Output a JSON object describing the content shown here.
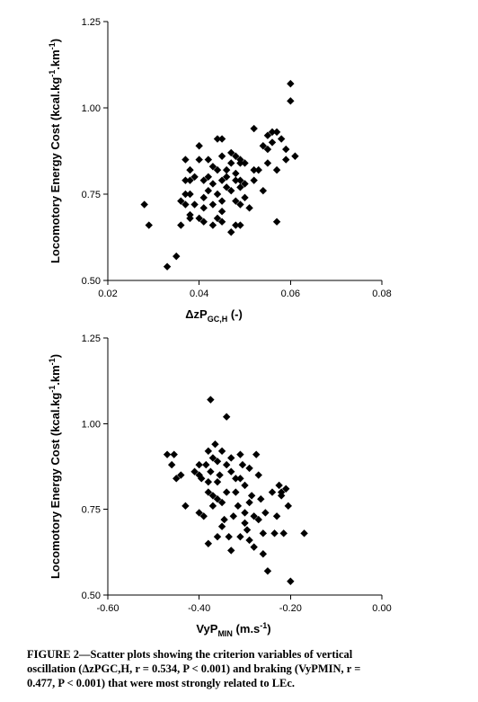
{
  "chart_data": [
    {
      "type": "scatter",
      "ylabel": "Locomotory Energy Cost (kcal.kg-1.km-1)",
      "xlabel": "ΔzPGC,H (-)",
      "xlim": [
        0.02,
        0.08
      ],
      "ylim": [
        0.5,
        1.25
      ],
      "xticks": [
        "0.02",
        "0.04",
        "0.06",
        "0.08"
      ],
      "yticks": [
        "0.50",
        "0.75",
        "1.00",
        "1.25"
      ],
      "points": [
        [
          0.028,
          0.72
        ],
        [
          0.029,
          0.66
        ],
        [
          0.033,
          0.54
        ],
        [
          0.035,
          0.57
        ],
        [
          0.036,
          0.66
        ],
        [
          0.036,
          0.73
        ],
        [
          0.037,
          0.75
        ],
        [
          0.037,
          0.72
        ],
        [
          0.037,
          0.79
        ],
        [
          0.037,
          0.85
        ],
        [
          0.038,
          0.82
        ],
        [
          0.038,
          0.75
        ],
        [
          0.038,
          0.68
        ],
        [
          0.038,
          0.69
        ],
        [
          0.038,
          0.79
        ],
        [
          0.039,
          0.8
        ],
        [
          0.039,
          0.72
        ],
        [
          0.04,
          0.68
        ],
        [
          0.04,
          0.85
        ],
        [
          0.04,
          0.89
        ],
        [
          0.041,
          0.74
        ],
        [
          0.041,
          0.67
        ],
        [
          0.041,
          0.71
        ],
        [
          0.041,
          0.79
        ],
        [
          0.042,
          0.76
        ],
        [
          0.042,
          0.85
        ],
        [
          0.042,
          0.8
        ],
        [
          0.043,
          0.72
        ],
        [
          0.043,
          0.66
        ],
        [
          0.043,
          0.78
        ],
        [
          0.043,
          0.83
        ],
        [
          0.044,
          0.75
        ],
        [
          0.044,
          0.82
        ],
        [
          0.044,
          0.91
        ],
        [
          0.044,
          0.68
        ],
        [
          0.045,
          0.86
        ],
        [
          0.045,
          0.79
        ],
        [
          0.045,
          0.7
        ],
        [
          0.045,
          0.73
        ],
        [
          0.045,
          0.67
        ],
        [
          0.045,
          0.91
        ],
        [
          0.046,
          0.77
        ],
        [
          0.046,
          0.82
        ],
        [
          0.046,
          0.8
        ],
        [
          0.047,
          0.84
        ],
        [
          0.047,
          0.76
        ],
        [
          0.047,
          0.64
        ],
        [
          0.047,
          0.87
        ],
        [
          0.048,
          0.79
        ],
        [
          0.048,
          0.73
        ],
        [
          0.048,
          0.66
        ],
        [
          0.048,
          0.86
        ],
        [
          0.048,
          0.81
        ],
        [
          0.049,
          0.85
        ],
        [
          0.049,
          0.77
        ],
        [
          0.049,
          0.84
        ],
        [
          0.049,
          0.72
        ],
        [
          0.049,
          0.66
        ],
        [
          0.049,
          0.79
        ],
        [
          0.05,
          0.78
        ],
        [
          0.05,
          0.74
        ],
        [
          0.05,
          0.84
        ],
        [
          0.051,
          0.71
        ],
        [
          0.052,
          0.82
        ],
        [
          0.052,
          0.94
        ],
        [
          0.052,
          0.79
        ],
        [
          0.053,
          0.82
        ],
        [
          0.054,
          0.76
        ],
        [
          0.054,
          0.89
        ],
        [
          0.055,
          0.88
        ],
        [
          0.055,
          0.92
        ],
        [
          0.055,
          0.84
        ],
        [
          0.056,
          0.9
        ],
        [
          0.056,
          0.93
        ],
        [
          0.057,
          0.82
        ],
        [
          0.057,
          0.67
        ],
        [
          0.057,
          0.93
        ],
        [
          0.058,
          0.91
        ],
        [
          0.059,
          0.85
        ],
        [
          0.059,
          0.88
        ],
        [
          0.06,
          1.07
        ],
        [
          0.06,
          1.02
        ],
        [
          0.061,
          0.86
        ]
      ]
    },
    {
      "type": "scatter",
      "ylabel": "Locomotory Energy Cost (kcal.kg-1.km-1)",
      "xlabel": "VyPMIN (m.s-1)",
      "xlim": [
        -0.6,
        0.0
      ],
      "ylim": [
        0.5,
        1.25
      ],
      "xticks": [
        "-0.60",
        "-0.40",
        "-0.20",
        "0.00"
      ],
      "yticks": [
        "0.50",
        "0.75",
        "1.00",
        "1.25"
      ],
      "points": [
        [
          -0.47,
          0.91
        ],
        [
          -0.46,
          0.88
        ],
        [
          -0.455,
          0.91
        ],
        [
          -0.45,
          0.84
        ],
        [
          -0.44,
          0.85
        ],
        [
          -0.43,
          0.76
        ],
        [
          -0.41,
          0.86
        ],
        [
          -0.4,
          0.88
        ],
        [
          -0.4,
          0.85
        ],
        [
          -0.395,
          0.84
        ],
        [
          -0.39,
          0.73
        ],
        [
          -0.385,
          0.88
        ],
        [
          -0.38,
          0.92
        ],
        [
          -0.38,
          0.83
        ],
        [
          -0.38,
          0.8
        ],
        [
          -0.38,
          0.65
        ],
        [
          -0.375,
          1.07
        ],
        [
          -0.375,
          0.86
        ],
        [
          -0.37,
          0.79
        ],
        [
          -0.37,
          0.76
        ],
        [
          -0.37,
          0.9
        ],
        [
          -0.365,
          0.94
        ],
        [
          -0.36,
          0.78
        ],
        [
          -0.36,
          0.67
        ],
        [
          -0.36,
          0.83
        ],
        [
          -0.355,
          0.85
        ],
        [
          -0.35,
          0.92
        ],
        [
          -0.35,
          0.77
        ],
        [
          -0.345,
          0.72
        ],
        [
          -0.34,
          1.02
        ],
        [
          -0.34,
          0.88
        ],
        [
          -0.34,
          0.8
        ],
        [
          -0.335,
          0.67
        ],
        [
          -0.33,
          0.86
        ],
        [
          -0.33,
          0.9
        ],
        [
          -0.325,
          0.73
        ],
        [
          -0.32,
          0.84
        ],
        [
          -0.32,
          0.8
        ],
        [
          -0.315,
          0.76
        ],
        [
          -0.31,
          0.91
        ],
        [
          -0.31,
          0.67
        ],
        [
          -0.305,
          0.88
        ],
        [
          -0.3,
          0.74
        ],
        [
          -0.3,
          0.71
        ],
        [
          -0.3,
          0.82
        ],
        [
          -0.295,
          0.69
        ],
        [
          -0.29,
          0.87
        ],
        [
          -0.29,
          0.66
        ],
        [
          -0.285,
          0.79
        ],
        [
          -0.28,
          0.73
        ],
        [
          -0.28,
          0.64
        ],
        [
          -0.275,
          0.91
        ],
        [
          -0.27,
          0.85
        ],
        [
          -0.27,
          0.72
        ],
        [
          -0.265,
          0.78
        ],
        [
          -0.26,
          0.68
        ],
        [
          -0.26,
          0.62
        ],
        [
          -0.255,
          0.74
        ],
        [
          -0.25,
          0.57
        ],
        [
          -0.24,
          0.8
        ],
        [
          -0.235,
          0.68
        ],
        [
          -0.23,
          0.73
        ],
        [
          -0.225,
          0.82
        ],
        [
          -0.22,
          0.8
        ],
        [
          -0.22,
          0.79
        ],
        [
          -0.215,
          0.68
        ],
        [
          -0.21,
          0.81
        ],
        [
          -0.205,
          0.76
        ],
        [
          -0.2,
          0.54
        ],
        [
          -0.17,
          0.68
        ],
        [
          -0.4,
          0.74
        ],
        [
          -0.33,
          0.63
        ],
        [
          -0.36,
          0.89
        ],
        [
          -0.31,
          0.84
        ],
        [
          -0.29,
          0.77
        ],
        [
          -0.35,
          0.7
        ]
      ]
    }
  ],
  "caption": {
    "line1": "FIGURE 2—Scatter plots showing the criterion variables of vertical",
    "line2": "oscillation (ΔzPGC,H, r = 0.534, P < 0.001) and braking (VyPMIN, r =",
    "line3": "0.477, P < 0.001) that were most strongly related to LEc."
  }
}
